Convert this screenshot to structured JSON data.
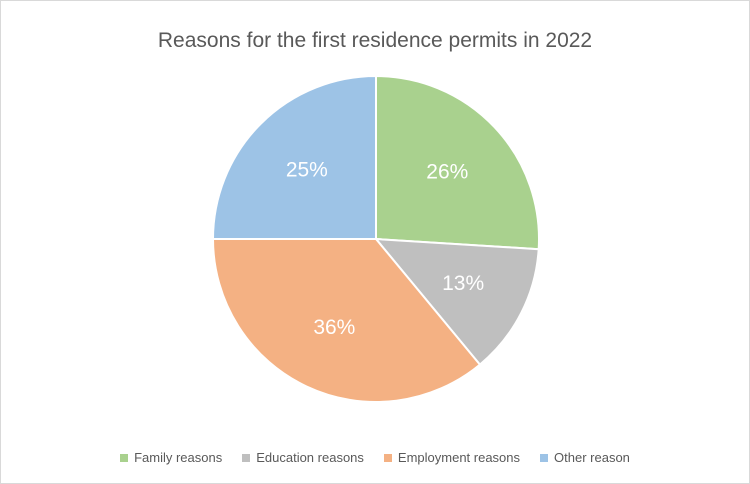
{
  "chart_data": {
    "type": "pie",
    "title": "Reasons for the first residence permits in 2022",
    "slices": [
      {
        "name": "Family reasons",
        "value": 26,
        "label": "26%",
        "color": "#a9d18e"
      },
      {
        "name": "Education reasons",
        "value": 13,
        "label": "13%",
        "color": "#bfbfbf"
      },
      {
        "name": "Employment reasons",
        "value": 36,
        "label": "36%",
        "color": "#f4b183"
      },
      {
        "name": "Other reason",
        "value": 25,
        "label": "25%",
        "color": "#9dc3e6"
      }
    ],
    "legend_position": "bottom"
  }
}
